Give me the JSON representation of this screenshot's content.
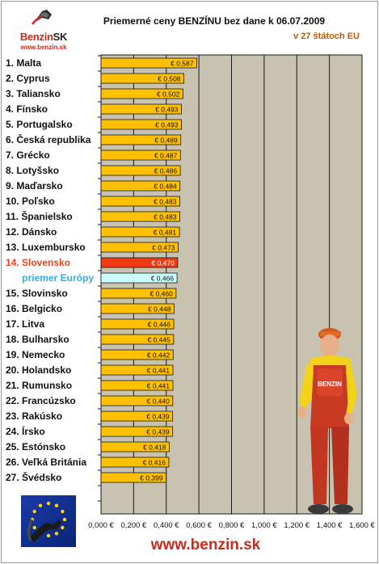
{
  "logo": {
    "brand": "Benzin",
    "brand_suffix": "SK",
    "url": "www.benzin.sk"
  },
  "footer": {
    "url": "www.benzin.sk"
  },
  "colors": {
    "bar": "#ffc000",
    "highlight_bar": "#f03a14",
    "average_bar": "#ccffff",
    "highlight_text": "#e8421a",
    "average_text": "#3aa9e0",
    "plot_bg": "#c8c2b0",
    "accent": "#cc2a1a"
  },
  "chart_data": {
    "type": "bar",
    "orientation": "horizontal",
    "title": "Priemerné ceny BENZÍNU bez dane k 06.07.2009",
    "subtitle": "v 27 štátoch EU",
    "categories": [
      "1. Malta",
      "2. Cyprus",
      "3. Taliansko",
      "4. Fínsko",
      "5. Portugalsko",
      "6. Česká republika",
      "7. Grécko",
      "8. Lotyšsko",
      "9. Maďarsko",
      "10. Poľsko",
      "11. Španielsko",
      "12. Dánsko",
      "13. Luxembursko",
      "14. Slovensko",
      "priemer Európy",
      "15. Slovinsko",
      "16. Belgicko",
      "17. Litva",
      "18. Bulharsko",
      "19. Nemecko",
      "20. Holandsko",
      "21. Rumunsko",
      "22. Francúzsko",
      "23. Rakúsko",
      "24. Írsko",
      "25. Estónsko",
      "26. Veľká Británia",
      "27. Švédsko"
    ],
    "values": [
      0.587,
      0.508,
      0.502,
      0.493,
      0.493,
      0.489,
      0.487,
      0.486,
      0.484,
      0.483,
      0.483,
      0.481,
      0.473,
      0.47,
      0.466,
      0.46,
      0.448,
      0.446,
      0.445,
      0.442,
      0.441,
      0.441,
      0.44,
      0.439,
      0.439,
      0.418,
      0.416,
      0.399
    ],
    "value_labels": [
      "€ 0,587",
      "€ 0,508",
      "€ 0,502",
      "€ 0,493",
      "€ 0,493",
      "€ 0,489",
      "€ 0,487",
      "€ 0,486",
      "€ 0,484",
      "€ 0,483",
      "€ 0,483",
      "€ 0,481",
      "€ 0,473",
      "€ 0,470",
      "€ 0,466",
      "€ 0,460",
      "€ 0,448",
      "€ 0,446",
      "€ 0,445",
      "€ 0,442",
      "€ 0,441",
      "€ 0,441",
      "€ 0,440",
      "€ 0,439",
      "€ 0,439",
      "€ 0,418",
      "€ 0,416",
      "€ 0,399"
    ],
    "highlight_index": 13,
    "average_index": 14,
    "xlim": [
      0,
      1.6
    ],
    "x_ticks": [
      0,
      0.2,
      0.4,
      0.6,
      0.8,
      1.0,
      1.2,
      1.4,
      1.6
    ],
    "x_tick_labels": [
      "0,000 €",
      "0,200 €",
      "0,400 €",
      "0,600 €",
      "0,800 €",
      "1,000 €",
      "1,200 €",
      "1,400 €",
      "1,600 €"
    ],
    "grid": true,
    "legend": "none",
    "xlabel": "",
    "ylabel": ""
  }
}
